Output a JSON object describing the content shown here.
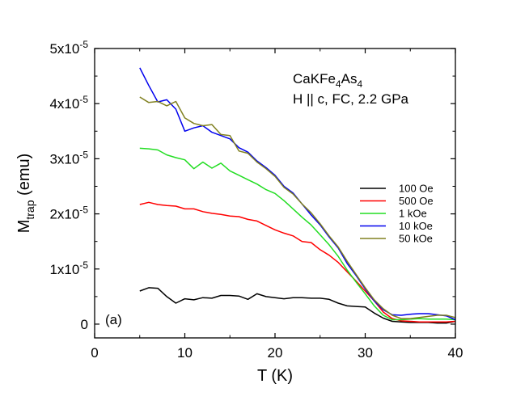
{
  "chart_data": {
    "type": "line",
    "xlabel": "T (K)",
    "ylabel_main": "M",
    "ylabel_sub": "trap",
    "ylabel_tail": " (emu)",
    "xlim": [
      0,
      40
    ],
    "ylim": [
      -0.25,
      5
    ],
    "y_scale_note": "values in units of 1e-5 emu",
    "x_ticks": [
      0,
      10,
      20,
      30,
      40
    ],
    "x_tick_labels": [
      "0",
      "10",
      "20",
      "30",
      "40"
    ],
    "y_ticks": [
      0,
      1,
      2,
      3,
      4,
      5
    ],
    "y_tick_labels": [
      {
        "mant": "0",
        "exp": ""
      },
      {
        "mant": "1x10",
        "exp": "-5"
      },
      {
        "mant": "2x10",
        "exp": "-5"
      },
      {
        "mant": "3x10",
        "exp": "-5"
      },
      {
        "mant": "4x10",
        "exp": "-5"
      },
      {
        "mant": "5x10",
        "exp": "-5"
      }
    ],
    "grid": false,
    "legend_position": "right",
    "annotation_line1": [
      {
        "t": "CaKFe",
        "sub": false
      },
      {
        "t": "4",
        "sub": true
      },
      {
        "t": "As",
        "sub": false
      },
      {
        "t": "4",
        "sub": true
      }
    ],
    "annotation_line2": "H || c, FC, 2.2 GPa",
    "panel_label": "(a)",
    "series": [
      {
        "name": "100 Oe",
        "color": "#000000",
        "x": [
          5,
          6,
          7,
          8,
          9,
          10,
          11,
          12,
          13,
          14,
          15,
          16,
          17,
          18,
          19,
          20,
          21,
          22,
          23,
          24,
          25,
          26,
          27,
          28,
          29,
          30,
          31,
          32,
          33,
          34,
          35,
          36,
          37,
          38,
          39,
          40
        ],
        "y": [
          0.6,
          0.66,
          0.65,
          0.5,
          0.38,
          0.46,
          0.44,
          0.48,
          0.47,
          0.52,
          0.52,
          0.51,
          0.45,
          0.55,
          0.5,
          0.48,
          0.46,
          0.48,
          0.48,
          0.47,
          0.47,
          0.45,
          0.38,
          0.33,
          0.32,
          0.31,
          0.2,
          0.11,
          0.05,
          0.04,
          0.03,
          0.03,
          0.03,
          0.02,
          0.02,
          0.05
        ]
      },
      {
        "name": "500 Oe",
        "color": "#ff0000",
        "x": [
          5,
          6,
          7,
          8,
          9,
          10,
          11,
          12,
          13,
          14,
          15,
          16,
          17,
          18,
          19,
          20,
          21,
          22,
          23,
          24,
          25,
          26,
          27,
          28,
          29,
          30,
          31,
          32,
          33,
          34,
          35,
          36,
          37,
          38,
          39,
          40
        ],
        "y": [
          2.17,
          2.21,
          2.17,
          2.15,
          2.14,
          2.09,
          2.09,
          2.04,
          2.01,
          1.99,
          1.96,
          1.95,
          1.9,
          1.87,
          1.79,
          1.71,
          1.65,
          1.6,
          1.5,
          1.48,
          1.35,
          1.25,
          1.12,
          0.95,
          0.78,
          0.6,
          0.42,
          0.22,
          0.1,
          0.06,
          0.05,
          0.04,
          0.04,
          0.04,
          0.04,
          0.05
        ]
      },
      {
        "name": "1 kOe",
        "color": "#22dd22",
        "x": [
          5,
          6,
          7,
          8,
          9,
          10,
          11,
          12,
          13,
          14,
          15,
          16,
          17,
          18,
          19,
          20,
          21,
          22,
          23,
          24,
          25,
          26,
          27,
          28,
          29,
          30,
          31,
          32,
          33,
          34,
          35,
          36,
          37,
          38,
          39,
          40
        ],
        "y": [
          3.19,
          3.18,
          3.16,
          3.07,
          3.02,
          2.98,
          2.82,
          2.94,
          2.83,
          2.92,
          2.78,
          2.7,
          2.62,
          2.54,
          2.44,
          2.37,
          2.24,
          2.09,
          1.94,
          1.8,
          1.62,
          1.44,
          1.23,
          0.98,
          0.76,
          0.55,
          0.33,
          0.16,
          0.08,
          0.08,
          0.09,
          0.1,
          0.09,
          0.09,
          0.09,
          0.08
        ]
      },
      {
        "name": "10 kOe",
        "color": "#0000ee",
        "x": [
          5,
          6,
          7,
          8,
          9,
          10,
          11,
          12,
          13,
          14,
          15,
          16,
          17,
          18,
          19,
          20,
          21,
          22,
          23,
          24,
          25,
          26,
          27,
          28,
          29,
          30,
          31,
          32,
          33,
          34,
          35,
          36,
          37,
          38,
          39,
          40
        ],
        "y": [
          4.65,
          4.33,
          4.03,
          4.07,
          3.9,
          3.5,
          3.56,
          3.6,
          3.48,
          3.42,
          3.36,
          3.2,
          3.12,
          2.96,
          2.84,
          2.7,
          2.5,
          2.38,
          2.18,
          1.98,
          1.8,
          1.58,
          1.38,
          1.1,
          0.88,
          0.64,
          0.42,
          0.26,
          0.17,
          0.16,
          0.18,
          0.19,
          0.19,
          0.17,
          0.15,
          0.08
        ]
      },
      {
        "name": "50 kOe",
        "color": "#808020",
        "x": [
          5,
          6,
          7,
          8,
          9,
          10,
          11,
          12,
          13,
          14,
          15,
          16,
          17,
          18,
          19,
          20,
          21,
          22,
          23,
          24,
          25,
          26,
          27,
          28,
          29,
          30,
          31,
          32,
          33,
          34,
          35,
          36,
          37,
          38,
          39,
          40
        ],
        "y": [
          4.12,
          4.02,
          4.04,
          3.96,
          4.04,
          3.74,
          3.64,
          3.6,
          3.62,
          3.44,
          3.42,
          3.14,
          3.1,
          2.94,
          2.82,
          2.68,
          2.48,
          2.36,
          2.18,
          2.02,
          1.82,
          1.6,
          1.4,
          1.14,
          0.9,
          0.66,
          0.44,
          0.28,
          0.16,
          0.1,
          0.1,
          0.12,
          0.14,
          0.16,
          0.16,
          0.12
        ]
      }
    ]
  }
}
